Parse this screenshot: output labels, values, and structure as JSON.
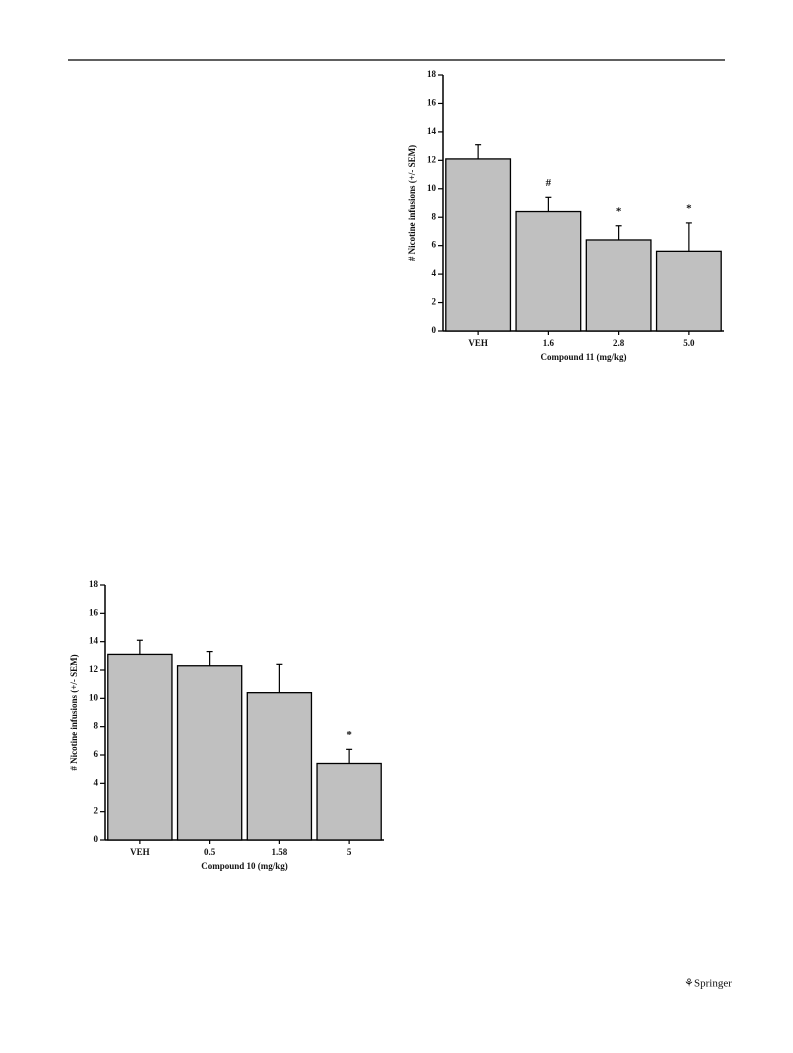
{
  "chart_data": [
    {
      "type": "bar",
      "categories": [
        "VEH",
        "1.6",
        "2.8",
        "5.0"
      ],
      "values": [
        12.1,
        8.4,
        6.4,
        5.6
      ],
      "errors": [
        1.0,
        1.0,
        1.0,
        2.0
      ],
      "annotations": [
        null,
        "#",
        "*",
        "*"
      ],
      "color": "#c0c0c0",
      "y_label": "# Nicotine infusions (+/- SEM)",
      "x_label": "Compound 11 (mg/kg)",
      "ylim": [
        0,
        18
      ],
      "yticks": [
        0,
        2,
        4,
        6,
        8,
        10,
        12,
        14,
        16,
        18
      ]
    },
    {
      "type": "bar",
      "categories": [
        "VEH",
        "0.5",
        "1.58",
        "5"
      ],
      "values": [
        13.1,
        12.3,
        10.4,
        5.4
      ],
      "errors": [
        1.0,
        1.0,
        2.0,
        1.0
      ],
      "annotations": [
        null,
        null,
        null,
        "*"
      ],
      "color": "#c0c0c0",
      "y_label": "# Nicotine infusions (+/- SEM)",
      "x_label": "Compound 10 (mg/kg)",
      "ylim": [
        0,
        18
      ],
      "yticks": [
        0,
        2,
        4,
        6,
        8,
        10,
        12,
        14,
        16,
        18
      ]
    }
  ],
  "footer": {
    "publisher": "Springer"
  }
}
